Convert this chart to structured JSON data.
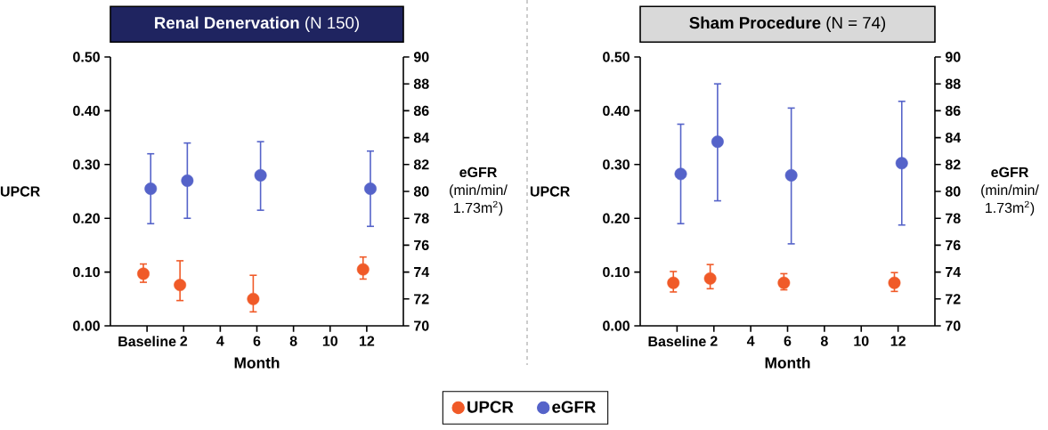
{
  "chart_data": [
    {
      "type": "scatter",
      "title": "**Renal Denervation** (N 150)",
      "xlabel": "Month",
      "ylabel": "UPCR",
      "y2label": "**eGFR** (min/min/1.73m$^{2}$)",
      "xlim": [
        -2,
        14
      ],
      "xticks": [
        {
          "value": 0,
          "label": "Baseline"
        },
        2,
        4,
        6,
        8,
        10,
        12
      ],
      "ylim": [
        0,
        0.5
      ],
      "yticks": [
        {
          "value": 0,
          "label": "0.00"
        },
        {
          "value": 0.1,
          "label": "0.10"
        },
        {
          "value": 0.2,
          "label": "0.20"
        },
        {
          "value": 0.3,
          "label": "0.30"
        },
        {
          "value": 0.4,
          "label": "0.40"
        },
        {
          "value": 0.5,
          "label": "0.50"
        }
      ],
      "y2lim": [
        70,
        90
      ],
      "y2ticks": [
        70,
        72,
        74,
        76,
        78,
        80,
        82,
        84,
        86,
        88,
        90
      ],
      "marker": "circle",
      "legend": "bottom",
      "series": [
        {
          "name": "UPCR",
          "color": "#f05a28",
          "x": [
            -0.2,
            1.8,
            5.8,
            11.8
          ],
          "values": [
            0.097,
            0.076,
            0.05,
            0.105
          ],
          "errors": [
            [
              0.081,
              0.115
            ],
            [
              0.047,
              0.121
            ],
            [
              0.026,
              0.094
            ],
            [
              0.087,
              0.128
            ]
          ]
        },
        {
          "name": "eGFR",
          "color": "#5563c9",
          "axis": "y2",
          "x": [
            0.2,
            2.2,
            6.2,
            12.2
          ],
          "values": [
            80.2,
            80.8,
            81.2,
            80.2
          ],
          "errors": [
            [
              77.6,
              82.8
            ],
            [
              78.0,
              83.6
            ],
            [
              78.6,
              83.7
            ],
            [
              77.4,
              83.0
            ]
          ]
        }
      ]
    },
    {
      "type": "scatter",
      "title": "**Sham Procedure** (N = 74)",
      "xlabel": "Month",
      "ylabel": "UPCR",
      "y2label": "**eGFR** (min/min/1.73m$^{2}$)",
      "xlim": [
        -2,
        14
      ],
      "xticks": [
        {
          "value": 0,
          "label": "Baseline"
        },
        2,
        4,
        6,
        8,
        10,
        12
      ],
      "ylim": [
        0,
        0.5
      ],
      "yticks": [
        {
          "value": 0,
          "label": "0.00"
        },
        {
          "value": 0.1,
          "label": "0.10"
        },
        {
          "value": 0.2,
          "label": "0.20"
        },
        {
          "value": 0.3,
          "label": "0.30"
        },
        {
          "value": 0.4,
          "label": "0.40"
        },
        {
          "value": 0.5,
          "label": "0.50"
        }
      ],
      "y2lim": [
        70,
        90
      ],
      "y2ticks": [
        70,
        72,
        74,
        76,
        78,
        80,
        82,
        84,
        86,
        88,
        90
      ],
      "marker": "circle",
      "series": [
        {
          "color": "#f05a28",
          "x": [
            -0.2,
            1.8,
            5.8,
            11.8
          ],
          "values": [
            0.08,
            0.088,
            0.08,
            0.08
          ],
          "errors": [
            [
              0.063,
              0.101
            ],
            [
              0.069,
              0.114
            ],
            [
              0.067,
              0.097
            ],
            [
              0.064,
              0.099
            ]
          ]
        },
        {
          "color": "#5563c9",
          "axis": "y2",
          "x": [
            0.2,
            2.2,
            6.2,
            12.2
          ],
          "values": [
            81.3,
            83.7,
            81.2,
            82.1
          ],
          "errors": [
            [
              77.6,
              85.0
            ],
            [
              79.3,
              88.0
            ],
            [
              76.1,
              86.2
            ],
            [
              77.5,
              86.7
            ]
          ]
        }
      ]
    }
  ]
}
